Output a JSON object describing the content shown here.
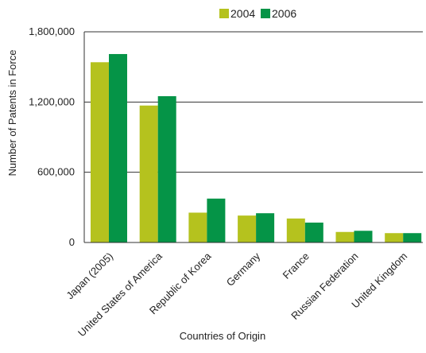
{
  "chart_data": {
    "type": "bar",
    "title": "",
    "xlabel": "Countries of Origin",
    "ylabel": "Number of Patents in Force",
    "ylim": [
      0,
      1800000
    ],
    "yticks": [
      0,
      600000,
      1200000,
      1800000
    ],
    "ytick_labels": [
      "0",
      "600,000",
      "1,200,000",
      "1,800,000"
    ],
    "grid": true,
    "legend": "top-center",
    "categories": [
      "Japan (2005)",
      "United States of America",
      "Republic of Korea",
      "Germany",
      "France",
      "Russian Federation",
      "United Kingdom"
    ],
    "series": [
      {
        "name": "2004",
        "color": "#b5c21e",
        "values": [
          1540000,
          1170000,
          255000,
          230000,
          205000,
          90000,
          80000
        ]
      },
      {
        "name": "2006",
        "color": "#059447",
        "values": [
          1610000,
          1250000,
          375000,
          250000,
          170000,
          100000,
          80000
        ]
      }
    ]
  }
}
